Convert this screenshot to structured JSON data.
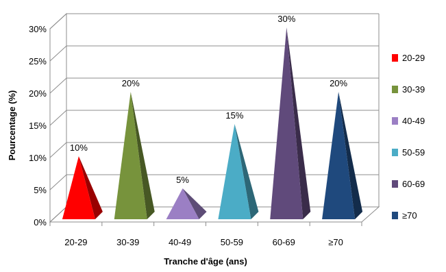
{
  "chart_data": {
    "type": "bar",
    "style": "3d-pyramid",
    "categories": [
      "20-29",
      "30-39",
      "40-49",
      "50-59",
      "60-69",
      "≥70"
    ],
    "values": [
      10,
      20,
      5,
      15,
      30,
      20
    ],
    "data_labels": [
      "10%",
      "20%",
      "5%",
      "15%",
      "30%",
      "20%"
    ],
    "colors": [
      "#ff0000",
      "#77933c",
      "#9b7fc4",
      "#4bacc6",
      "#604a7b",
      "#1f497d"
    ],
    "xlabel": "Tranche d'âge (ans)",
    "ylabel": "Pourcentage (%)",
    "ylim": [
      0,
      30
    ],
    "yticks": [
      "0%",
      "5%",
      "10%",
      "15%",
      "20%",
      "25%",
      "30%"
    ],
    "grid": true,
    "legend": {
      "placement": "right",
      "entries": [
        "20-29",
        "30-39",
        "40-49",
        "50-59",
        "60-69",
        "≥70"
      ]
    }
  }
}
